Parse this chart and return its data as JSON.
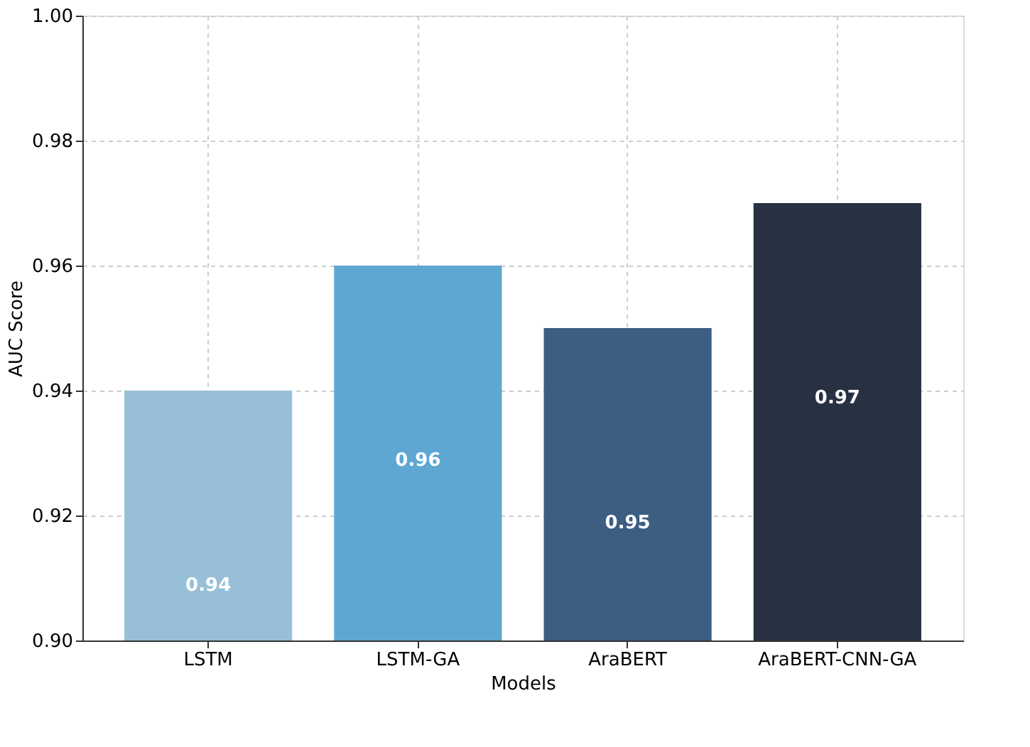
{
  "chart_data": {
    "type": "bar",
    "xlabel": "Models",
    "ylabel": "AUC Score",
    "categories": [
      "LSTM",
      "LSTM-GA",
      "AraBERT",
      "AraBERT-CNN-GA"
    ],
    "values": [
      0.94,
      0.96,
      0.95,
      0.97
    ],
    "colors": [
      "#98bfd8",
      "#5ea7d3",
      "#3d5d82",
      "#283142"
    ],
    "ylim": [
      0.9,
      1.0
    ],
    "yticks": [
      {
        "value": 0.9,
        "label": "0.90"
      },
      0.92,
      0.94,
      0.96,
      0.98,
      {
        "value": 1.0,
        "label": "1.00"
      }
    ],
    "grid": true,
    "data_labels": true
  }
}
